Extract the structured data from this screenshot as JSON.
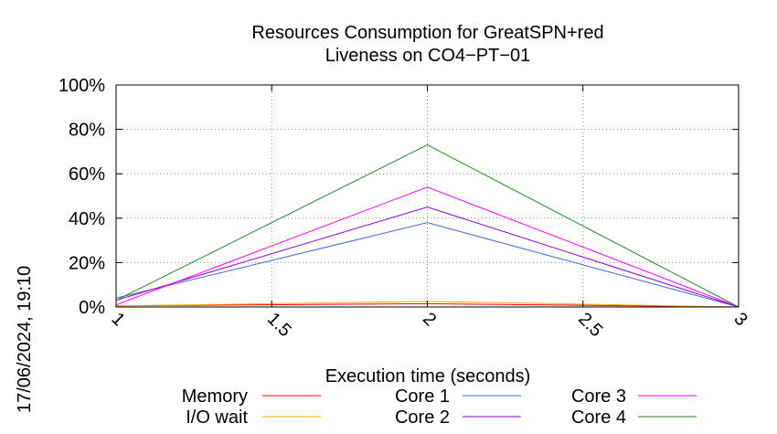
{
  "chart_data": {
    "type": "line",
    "title_lines": [
      "Resources Consumption for GreatSPN+red",
      "Liveness on CO4−PT−01"
    ],
    "xlabel": "Execution time (seconds)",
    "ylabel": "",
    "xlim": [
      1,
      3
    ],
    "ylim": [
      0,
      100
    ],
    "x_ticks": [
      1,
      1.5,
      2,
      2.5,
      3
    ],
    "x_tick_labels": [
      "1",
      "1.5",
      "2",
      "2.5",
      "3"
    ],
    "y_ticks": [
      0,
      20,
      40,
      60,
      80,
      100
    ],
    "y_tick_labels": [
      "0%",
      "20%",
      "40%",
      "60%",
      "80%",
      "100%"
    ],
    "grid": true,
    "legend_position": "bottom",
    "x": [
      1,
      2,
      3
    ],
    "series": [
      {
        "name": "Memory",
        "color": "#ff0000",
        "values": [
          0.5,
          1.5,
          0
        ]
      },
      {
        "name": "I/O wait",
        "color": "#ffa500",
        "values": [
          0.5,
          2.5,
          0
        ]
      },
      {
        "name": "Core 1",
        "color": "#4169e1",
        "values": [
          4,
          38,
          0
        ]
      },
      {
        "name": "Core 2",
        "color": "#9400d3",
        "values": [
          3,
          45,
          0
        ]
      },
      {
        "name": "Core 3",
        "color": "#ff00ff",
        "values": [
          1,
          54,
          0
        ]
      },
      {
        "name": "Core 4",
        "color": "#228b22",
        "values": [
          3,
          73,
          0
        ]
      }
    ]
  },
  "timestamp": "17/06/2024, 19:10"
}
